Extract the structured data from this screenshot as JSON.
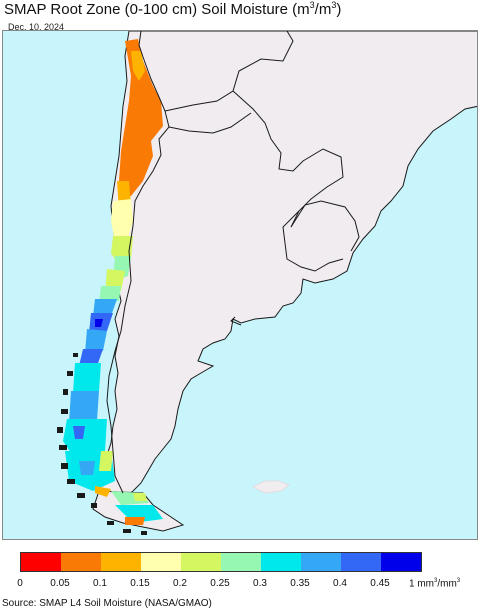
{
  "title_prefix": "SMAP Root Zone (0-100 cm) Soil Moisture (m",
  "title_mid": "/m",
  "title_suffix": ")",
  "title_exp": "3",
  "date": "Dec. 10, 2024",
  "legend": {
    "ticks": [
      "0",
      "0.05",
      "0.1",
      "0.15",
      "0.2",
      "0.25",
      "0.3",
      "0.35",
      "0.4",
      "0.45"
    ],
    "unit_prefix": "1 mm",
    "unit_mid": "/mm",
    "unit_exp": "3",
    "colors": [
      "#ff0000",
      "#f97a05",
      "#fdb300",
      "#ffffae",
      "#d4f761",
      "#95f7b2",
      "#00e8eb",
      "#35a8f5",
      "#3268f5",
      "#0000ea"
    ]
  },
  "source": "Source: SMAP L4 Soil Moisture (NASA/GMAO)",
  "colors": {
    "ocean": "#c7f5fb",
    "land": "#f0ecf0",
    "border": "#1a1a1a"
  }
}
